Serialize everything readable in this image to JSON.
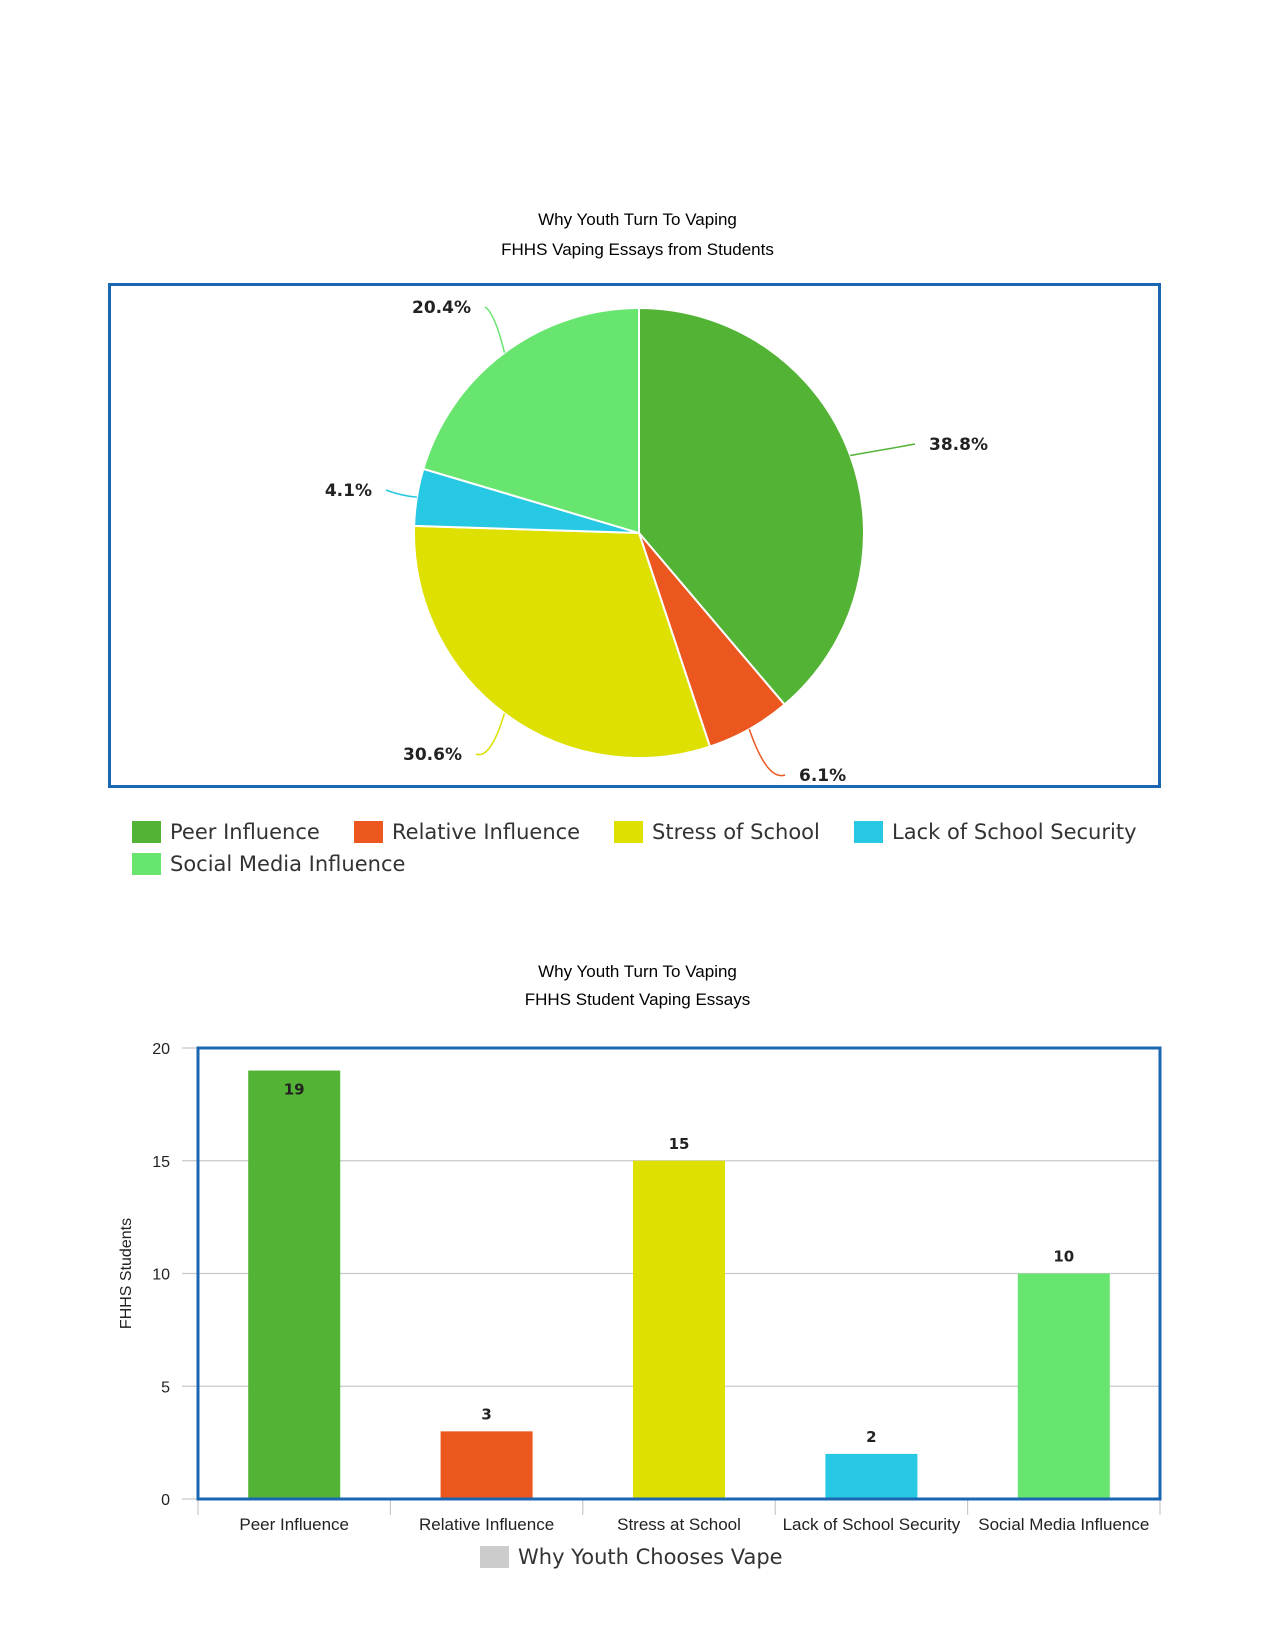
{
  "chart_data": [
    {
      "type": "pie",
      "title": "Why Youth Turn To Vaping",
      "subtitle": "FHHS Vaping Essays from Students",
      "slices": [
        {
          "label": "Peer Influence",
          "value": 38.8,
          "value_label": "38.8%",
          "color": "#52b335"
        },
        {
          "label": "Relative Influence",
          "value": 6.1,
          "value_label": "6.1%",
          "color": "#ec571f"
        },
        {
          "label": "Stress of School",
          "value": 30.6,
          "value_label": "30.6%",
          "color": "#dde000"
        },
        {
          "label": "Lack of School Security",
          "value": 4.1,
          "value_label": "4.1%",
          "color": "#27c8e3"
        },
        {
          "label": "Social Media Influence",
          "value": 20.4,
          "value_label": "20.4%",
          "color": "#67e56f"
        }
      ],
      "legend_position": "bottom"
    },
    {
      "type": "bar",
      "title": "Why Youth Turn To Vaping",
      "subtitle": "FHHS Student Vaping Essays",
      "categories": [
        "Peer Influence",
        "Relative Influence",
        "Stress at School",
        "Lack of School Security",
        "Social Media Influence"
      ],
      "values": [
        19,
        3,
        15,
        2,
        10
      ],
      "colors": [
        "#52b335",
        "#ec571f",
        "#dde000",
        "#27c8e3",
        "#67e56f"
      ],
      "ylabel": "FHHS Students",
      "ylim": [
        0,
        20
      ],
      "yticks": [
        0,
        5,
        10,
        15,
        20
      ],
      "grid": true,
      "series": [
        {
          "name": "Why Youth Chooses Vape",
          "values": [
            19,
            3,
            15,
            2,
            10
          ]
        }
      ],
      "legend_color": "#cccccc",
      "legend_position": "bottom"
    }
  ]
}
